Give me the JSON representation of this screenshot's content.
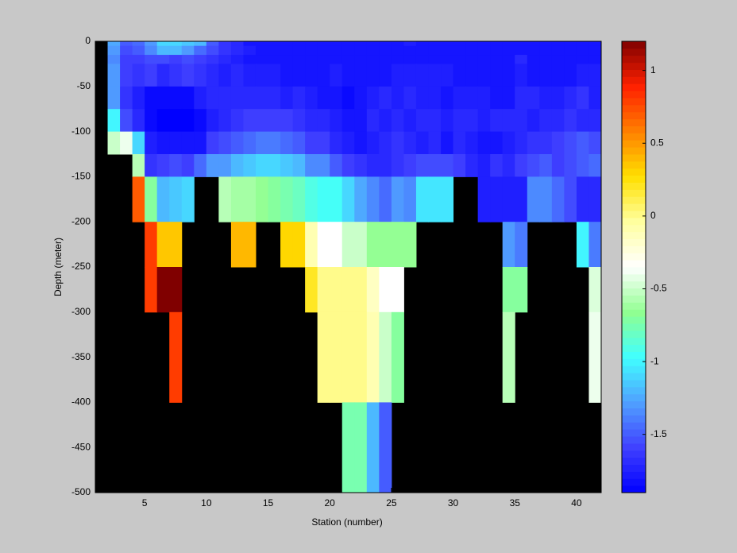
{
  "chart_data": {
    "type": "heatmap",
    "xlabel": "Station (number)",
    "ylabel": "Depth (meter)",
    "xlim": [
      1,
      42
    ],
    "ylim": [
      -500,
      0
    ],
    "xticks": [
      5,
      10,
      15,
      20,
      25,
      30,
      35,
      40
    ],
    "yticks": [
      0,
      -50,
      -100,
      -150,
      -200,
      -250,
      -300,
      -350,
      -400,
      -450,
      -500
    ],
    "x_edges": [
      2,
      3,
      4,
      5,
      6,
      7,
      8,
      9,
      10,
      11,
      12,
      13,
      14,
      15,
      16,
      17,
      18,
      19,
      20,
      21,
      22,
      23,
      24,
      25,
      26,
      27,
      28,
      29,
      30,
      31,
      32,
      33,
      34,
      35,
      36,
      37,
      38,
      39,
      40,
      41,
      42
    ],
    "y_edges": [
      0,
      -5,
      -15,
      -25,
      -50,
      -75,
      -100,
      -125,
      -150,
      -200,
      -250,
      -300,
      -400,
      -500
    ],
    "z": [
      [
        -1.25,
        -1.5,
        -1.45,
        -1.3,
        -1.1,
        -1.1,
        -1.15,
        -1.2,
        -1.5,
        -1.65,
        -1.7,
        -1.8,
        -1.8,
        -1.8,
        -1.8,
        -1.8,
        -1.8,
        -1.8,
        -1.8,
        -1.8,
        -1.8,
        -1.8,
        -1.8,
        -1.8,
        -1.75,
        -1.8,
        -1.8,
        -1.8,
        -1.8,
        -1.8,
        -1.8,
        -1.8,
        -1.8,
        -1.8,
        -1.8,
        -1.8,
        -1.8,
        -1.8,
        -1.8,
        -1.8
      ],
      [
        -1.3,
        -1.55,
        -1.5,
        -1.35,
        -1.2,
        -1.2,
        -1.3,
        -1.45,
        -1.55,
        -1.65,
        -1.7,
        -1.75,
        -1.8,
        -1.8,
        -1.8,
        -1.8,
        -1.8,
        -1.8,
        -1.8,
        -1.8,
        -1.8,
        -1.8,
        -1.8,
        -1.8,
        -1.8,
        -1.8,
        -1.8,
        -1.8,
        -1.8,
        -1.8,
        -1.8,
        -1.8,
        -1.8,
        -1.8,
        -1.8,
        -1.8,
        -1.8,
        -1.8,
        -1.8,
        -1.8
      ],
      [
        -1.35,
        -1.6,
        -1.6,
        -1.55,
        -1.55,
        -1.6,
        -1.55,
        -1.6,
        -1.65,
        -1.7,
        -1.75,
        -1.8,
        -1.8,
        -1.8,
        -1.8,
        -1.8,
        -1.8,
        -1.8,
        -1.8,
        -1.8,
        -1.8,
        -1.8,
        -1.8,
        -1.8,
        -1.8,
        -1.8,
        -1.8,
        -1.8,
        -1.8,
        -1.8,
        -1.8,
        -1.8,
        -1.8,
        -1.7,
        -1.8,
        -1.8,
        -1.8,
        -1.8,
        -1.8,
        -1.8
      ],
      [
        -1.3,
        -1.6,
        -1.65,
        -1.6,
        -1.7,
        -1.65,
        -1.6,
        -1.65,
        -1.7,
        -1.75,
        -1.7,
        -1.75,
        -1.75,
        -1.75,
        -1.8,
        -1.8,
        -1.8,
        -1.8,
        -1.75,
        -1.8,
        -1.8,
        -1.8,
        -1.8,
        -1.75,
        -1.75,
        -1.75,
        -1.75,
        -1.75,
        -1.8,
        -1.8,
        -1.8,
        -1.8,
        -1.8,
        -1.75,
        -1.8,
        -1.8,
        -1.8,
        -1.8,
        -1.75,
        -1.75
      ],
      [
        -1.3,
        -1.65,
        -1.75,
        -1.85,
        -1.85,
        -1.85,
        -1.85,
        -1.75,
        -1.7,
        -1.7,
        -1.7,
        -1.7,
        -1.7,
        -1.7,
        -1.75,
        -1.7,
        -1.75,
        -1.8,
        -1.8,
        -1.85,
        -1.8,
        -1.75,
        -1.7,
        -1.75,
        -1.7,
        -1.75,
        -1.75,
        -1.8,
        -1.75,
        -1.75,
        -1.75,
        -1.8,
        -1.8,
        -1.7,
        -1.7,
        -1.75,
        -1.75,
        -1.7,
        -1.65,
        -1.75
      ],
      [
        -1.0,
        -1.55,
        -1.7,
        -1.85,
        -1.9,
        -1.9,
        -1.9,
        -1.85,
        -1.75,
        -1.7,
        -1.65,
        -1.6,
        -1.6,
        -1.6,
        -1.6,
        -1.65,
        -1.7,
        -1.7,
        -1.75,
        -1.8,
        -1.8,
        -1.7,
        -1.75,
        -1.7,
        -1.75,
        -1.7,
        -1.7,
        -1.75,
        -1.7,
        -1.7,
        -1.75,
        -1.7,
        -1.7,
        -1.7,
        -1.75,
        -1.7,
        -1.7,
        -1.65,
        -1.7,
        -1.7
      ],
      [
        -0.5,
        -0.4,
        -1.1,
        -1.75,
        -1.8,
        -1.8,
        -1.8,
        -1.8,
        -1.6,
        -1.55,
        -1.5,
        -1.45,
        -1.4,
        -1.4,
        -1.45,
        -1.5,
        -1.6,
        -1.6,
        -1.7,
        -1.75,
        -1.8,
        -1.75,
        -1.7,
        -1.65,
        -1.7,
        -1.75,
        -1.7,
        -1.8,
        -1.7,
        -1.75,
        -1.8,
        -1.8,
        -1.75,
        -1.7,
        -1.65,
        -1.65,
        -1.6,
        -1.55,
        -1.5,
        -1.55
      ],
      [
        null,
        null,
        -0.55,
        -1.65,
        -1.6,
        -1.55,
        -1.6,
        -1.45,
        -1.3,
        -1.3,
        -1.2,
        -1.15,
        -1.1,
        -1.1,
        -1.15,
        -1.2,
        -1.35,
        -1.35,
        -1.5,
        -1.6,
        -1.65,
        -1.7,
        -1.7,
        -1.65,
        -1.6,
        -1.55,
        -1.55,
        -1.55,
        -1.6,
        -1.7,
        -1.75,
        -1.65,
        -1.7,
        -1.6,
        -1.55,
        -1.5,
        -1.6,
        -1.55,
        -1.5,
        -1.45
      ],
      [
        null,
        null,
        0.7,
        -0.7,
        -1.2,
        -1.15,
        -1.1,
        null,
        null,
        -0.55,
        -0.6,
        -0.6,
        -0.65,
        -0.7,
        -0.75,
        -0.8,
        -0.9,
        -0.95,
        -0.95,
        -1.1,
        -1.25,
        -1.35,
        -1.45,
        -1.3,
        -1.35,
        -1.05,
        -1.05,
        -1.05,
        null,
        null,
        -1.75,
        -1.75,
        -1.75,
        -1.75,
        -1.35,
        -1.35,
        -1.45,
        -1.55,
        -1.7,
        -1.7
      ],
      [
        null,
        null,
        null,
        0.8,
        0.35,
        0.35,
        null,
        null,
        null,
        null,
        0.4,
        0.4,
        null,
        null,
        0.3,
        0.3,
        -0.1,
        -0.35,
        -0.35,
        -0.5,
        -0.5,
        -0.65,
        -0.65,
        -0.65,
        -0.65,
        null,
        null,
        null,
        null,
        null,
        null,
        null,
        -1.3,
        -1.4,
        null,
        null,
        null,
        null,
        -1.0,
        -1.4
      ],
      [
        null,
        null,
        null,
        0.8,
        1.2,
        1.2,
        null,
        null,
        null,
        null,
        null,
        null,
        null,
        null,
        null,
        null,
        0.2,
        0,
        0,
        0,
        0,
        -0.15,
        -0.35,
        -0.35,
        null,
        null,
        null,
        null,
        null,
        null,
        null,
        null,
        -0.7,
        -0.7,
        null,
        null,
        null,
        null,
        null,
        -0.45
      ],
      [
        null,
        null,
        null,
        null,
        null,
        0.8,
        null,
        null,
        null,
        null,
        null,
        null,
        null,
        null,
        null,
        null,
        null,
        0,
        0,
        0,
        0,
        -0.1,
        -0.5,
        -0.7,
        null,
        null,
        null,
        null,
        null,
        null,
        null,
        null,
        -0.55,
        null,
        null,
        null,
        null,
        null,
        null,
        -0.4
      ],
      [
        null,
        null,
        null,
        null,
        null,
        null,
        null,
        null,
        null,
        null,
        null,
        null,
        null,
        null,
        null,
        null,
        null,
        null,
        null,
        -0.75,
        -0.75,
        -1.2,
        -1.5,
        null,
        null,
        null,
        null,
        null,
        null,
        null,
        null,
        null,
        null,
        null,
        null,
        null,
        null,
        null,
        null,
        null
      ]
    ],
    "clim": [
      -1.9,
      1.2
    ],
    "cticks": [
      1,
      0.5,
      0,
      -0.5,
      -1,
      -1.5
    ],
    "colormap": [
      "#0000ff",
      "#4040ff",
      "#50a0ff",
      "#40ffff",
      "#90ff90",
      "#ffffff",
      "#ffffa0",
      "#ffe000",
      "#ff8000",
      "#ff2000",
      "#800000"
    ],
    "nan_color": "#000000"
  }
}
